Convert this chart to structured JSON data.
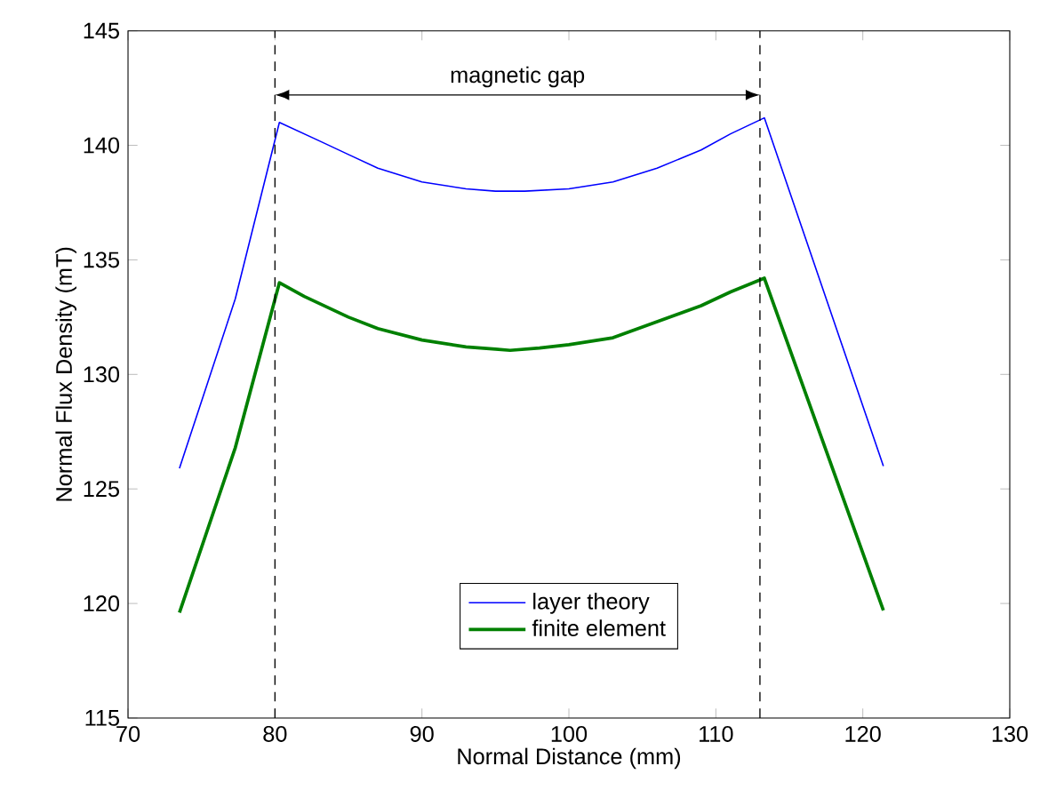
{
  "chart_data": {
    "type": "line",
    "xlabel": "Normal Distance (mm)",
    "ylabel": "Normal Flux Density (mT)",
    "xlim": [
      70,
      130
    ],
    "xticks": [
      70,
      80,
      90,
      100,
      110,
      120,
      130
    ],
    "ylim": [
      115,
      145
    ],
    "yticks": [
      115,
      120,
      125,
      130,
      135,
      140,
      145
    ],
    "series": [
      {
        "name": "layer theory",
        "color": "#0000ff",
        "x": [
          73.5,
          77.3,
          80.3,
          83,
          85,
          87,
          90,
          93,
          95,
          97,
          100,
          103,
          106,
          109,
          111,
          113.3,
          121.4
        ],
        "values": [
          125.9,
          133.3,
          141,
          140.2,
          139.6,
          139.0,
          138.4,
          138.1,
          138.0,
          138.0,
          138.1,
          138.4,
          139.0,
          139.8,
          140.5,
          141.2,
          126
        ]
      },
      {
        "name": "finite element",
        "color": "#008000",
        "x": [
          73.5,
          77.3,
          80.3,
          82,
          85,
          87,
          90,
          93,
          95,
          96,
          98,
          100,
          103,
          106,
          109,
          111,
          113.3,
          121.4
        ],
        "values": [
          119.6,
          126.8,
          134,
          133.4,
          132.5,
          132.0,
          131.5,
          131.2,
          131.1,
          131.05,
          131.15,
          131.3,
          131.6,
          132.3,
          133.0,
          133.6,
          134.2,
          119.7
        ]
      }
    ],
    "ref_lines": [
      {
        "axis": "x",
        "value": 80,
        "color": "#000000",
        "line_style": "dashed"
      },
      {
        "axis": "x",
        "value": 113,
        "color": "#000000",
        "line_style": "dashed"
      }
    ],
    "annotations": [
      "magnetic gap"
    ],
    "legend": "bottom",
    "grid": false,
    "marker": "none",
    "line_style": "solid"
  }
}
